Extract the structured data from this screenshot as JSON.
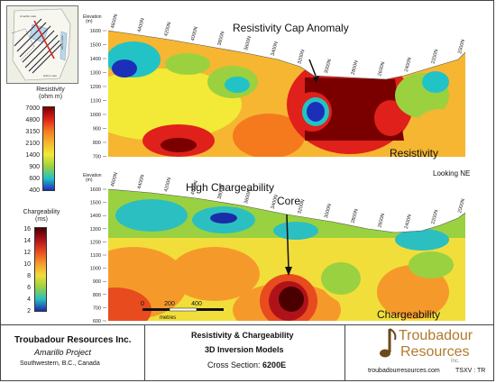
{
  "location_map": {
    "labels": [
      "Amarillo Lake",
      "Gillon Lake",
      "Elbow Lake"
    ]
  },
  "resistivity_legend": {
    "title": "Resistivity",
    "unit": "(ohm m)",
    "labels": [
      "7000",
      "4800",
      "3150",
      "2100",
      "1400",
      "900",
      "600",
      "400"
    ],
    "colors": [
      "#7a0000",
      "#e0201a",
      "#f57a1e",
      "#f6b631",
      "#f2ea36",
      "#9bd13f",
      "#22c3c6",
      "#1c2fb8"
    ]
  },
  "chargeability_legend": {
    "title": "Chargeability",
    "unit": "(ms)",
    "labels": [
      "16",
      "14",
      "12",
      "10",
      "8",
      "6",
      "4",
      "2"
    ],
    "colors": [
      "#4a0000",
      "#b0121a",
      "#e84b1e",
      "#f59a2a",
      "#f1de3a",
      "#9ad140",
      "#2bbfc2",
      "#1b2ca8"
    ]
  },
  "top_section": {
    "elevation_title": "Elevation",
    "elevation_unit": "(m)",
    "elevation_labels": [
      "1600",
      "1500",
      "1400",
      "1300",
      "1200",
      "1100",
      "1000",
      "900",
      "800",
      "700"
    ],
    "northing_labels": [
      "4600N",
      "4400N",
      "4200N",
      "4000N",
      "3800N",
      "3600N",
      "3400N",
      "3200N",
      "3000N",
      "2800N",
      "2600N",
      "2400N",
      "2200N",
      "2000N"
    ],
    "panel_label": "Resistivity",
    "callout": "Resistivity Cap Anomaly"
  },
  "bottom_section": {
    "elevation_title": "Elevation",
    "elevation_unit": "(m)",
    "elevation_labels": [
      "1600",
      "1500",
      "1400",
      "1300",
      "1200",
      "1100",
      "1000",
      "900",
      "800",
      "700",
      "600"
    ],
    "northing_labels": [
      "4600N",
      "4400N",
      "4200N",
      "4000N",
      "3800N",
      "3600N",
      "3400N",
      "3200N",
      "3000N",
      "2800N",
      "2600N",
      "2400N",
      "2200N",
      "2000N"
    ],
    "panel_label": "Chargeability",
    "callout_line1": "High Chargeability",
    "callout_line2": "Core",
    "scale_labels": [
      "0",
      "200",
      "400"
    ],
    "scale_unit": "metres"
  },
  "view_direction": "Looking NE",
  "footer": {
    "company": "Troubadour Resources Inc.",
    "project": "Amarillo Project",
    "location": "Southwestern, B.C., Canada",
    "title_line1": "Resistivity & Chargeability",
    "title_line2": "3D Inversion Models",
    "cross_section_label": "Cross Section:",
    "cross_section_value": "6200E",
    "logo_line1": "Troubadour",
    "logo_line2": "Resources",
    "logo_line3": "Inc.",
    "website": "troubadourresources.com",
    "ticker": "TSXV : TR"
  }
}
